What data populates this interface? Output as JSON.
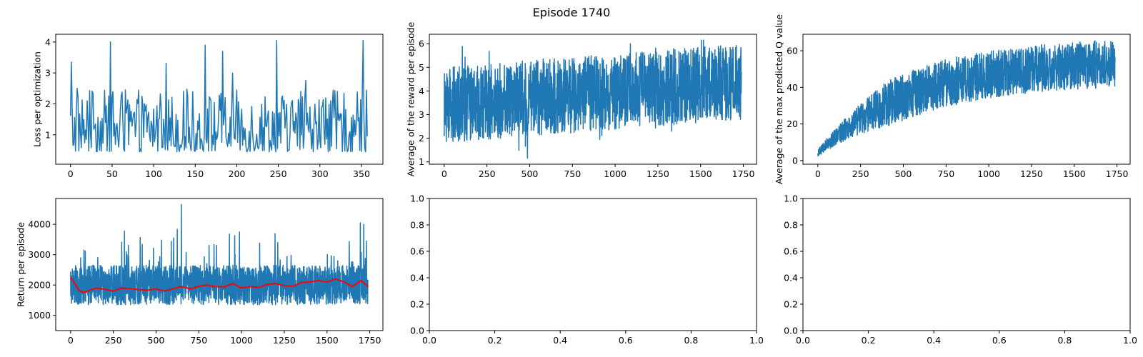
{
  "figure": {
    "title": "Episode 1740"
  },
  "chart_data": [
    {
      "id": "loss",
      "type": "line",
      "title": "",
      "xlabel": "",
      "ylabel": "Loss per optimization",
      "xlim": [
        -17.8,
        375.8
      ],
      "ylim": [
        0.05,
        4.25
      ],
      "xticks": [
        0,
        50,
        100,
        150,
        200,
        250,
        300,
        350
      ],
      "yticks": [
        1,
        2,
        3,
        4
      ],
      "series": [
        {
          "color": "#1f77b4",
          "n": 358,
          "y_range": [
            0.25,
            4.05
          ],
          "mean": 1.4,
          "peaks": [
            [
              1,
              3.35
            ],
            [
              48,
              4.0
            ],
            [
              162,
              3.9
            ],
            [
              183,
              3.7
            ],
            [
              248,
              4.05
            ],
            [
              352,
              4.05
            ]
          ]
        }
      ]
    },
    {
      "id": "avg-reward",
      "type": "line",
      "title": "",
      "xlabel": "",
      "ylabel": "Average of the reward per episode",
      "xlim": [
        -87,
        1827
      ],
      "ylim": [
        0.9,
        6.4
      ],
      "xticks": [
        0,
        250,
        500,
        750,
        1000,
        1250,
        1500,
        1750
      ],
      "yticks": [
        1,
        2,
        3,
        4,
        5,
        6
      ],
      "series": [
        {
          "color": "#1f77b4",
          "n": 1740,
          "y_range": [
            1.15,
            6.15
          ],
          "mean_start": 3.4,
          "mean_end": 4.4
        }
      ]
    },
    {
      "id": "max-q",
      "type": "line",
      "title": "",
      "xlabel": "",
      "ylabel": "Average of the max predicted Q value",
      "xlim": [
        -87,
        1827
      ],
      "ylim": [
        -2,
        69
      ],
      "xticks": [
        0,
        250,
        500,
        750,
        1000,
        1250,
        1500,
        1750
      ],
      "yticks": [
        0,
        20,
        40,
        60
      ],
      "series": [
        {
          "color": "#1f77b4",
          "n": 1740,
          "y_range": [
            2,
            66
          ],
          "mean_start": 4,
          "mean_end": 53
        }
      ]
    },
    {
      "id": "return",
      "type": "line",
      "title": "",
      "xlabel": "",
      "ylabel": "Return per episode",
      "xlim": [
        -87,
        1827
      ],
      "ylim": [
        500,
        4850
      ],
      "xticks": [
        0,
        250,
        500,
        750,
        1000,
        1250,
        1500,
        1750
      ],
      "yticks": [
        1000,
        2000,
        3000,
        4000
      ],
      "series": [
        {
          "color": "#1f77b4",
          "n": 1740,
          "y_range": [
            650,
            4650
          ],
          "mean": 2000,
          "peaks": [
            [
              648,
              4650
            ],
            [
              1695,
              4050
            ],
            [
              1715,
              4000
            ]
          ]
        },
        {
          "color": "#ff0000",
          "smoothed": true,
          "points": [
            [
              0,
              2250
            ],
            [
              25,
              2050
            ],
            [
              50,
              1820
            ],
            [
              75,
              1750
            ],
            [
              100,
              1800
            ],
            [
              150,
              1900
            ],
            [
              200,
              1860
            ],
            [
              250,
              1800
            ],
            [
              300,
              1900
            ],
            [
              350,
              1880
            ],
            [
              400,
              1850
            ],
            [
              450,
              1830
            ],
            [
              500,
              1870
            ],
            [
              550,
              1800
            ],
            [
              600,
              1880
            ],
            [
              650,
              1950
            ],
            [
              700,
              1870
            ],
            [
              750,
              1960
            ],
            [
              800,
              2000
            ],
            [
              850,
              1950
            ],
            [
              900,
              1940
            ],
            [
              950,
              2050
            ],
            [
              1000,
              1900
            ],
            [
              1050,
              1950
            ],
            [
              1100,
              1920
            ],
            [
              1150,
              2020
            ],
            [
              1200,
              2050
            ],
            [
              1250,
              1980
            ],
            [
              1300,
              1960
            ],
            [
              1350,
              2080
            ],
            [
              1400,
              2100
            ],
            [
              1450,
              2150
            ],
            [
              1500,
              2100
            ],
            [
              1550,
              2200
            ],
            [
              1600,
              2100
            ],
            [
              1650,
              1950
            ],
            [
              1700,
              2150
            ],
            [
              1740,
              1950
            ]
          ]
        }
      ]
    },
    {
      "id": "empty-middle",
      "type": "line",
      "title": "",
      "xlabel": "",
      "ylabel": "",
      "xlim": [
        0,
        1
      ],
      "ylim": [
        0,
        1
      ],
      "xticks": [
        0.0,
        0.2,
        0.4,
        0.6,
        0.8,
        1.0
      ],
      "yticks": [
        0.0,
        0.2,
        0.4,
        0.6,
        0.8,
        1.0
      ],
      "decimals": 1,
      "series": []
    },
    {
      "id": "empty-right",
      "type": "line",
      "title": "",
      "xlabel": "",
      "ylabel": "",
      "xlim": [
        0,
        1
      ],
      "ylim": [
        0,
        1
      ],
      "xticks": [
        0.0,
        0.2,
        0.4,
        0.6,
        0.8,
        1.0
      ],
      "yticks": [
        0.0,
        0.2,
        0.4,
        0.6,
        0.8,
        1.0
      ],
      "decimals": 1,
      "series": []
    }
  ]
}
